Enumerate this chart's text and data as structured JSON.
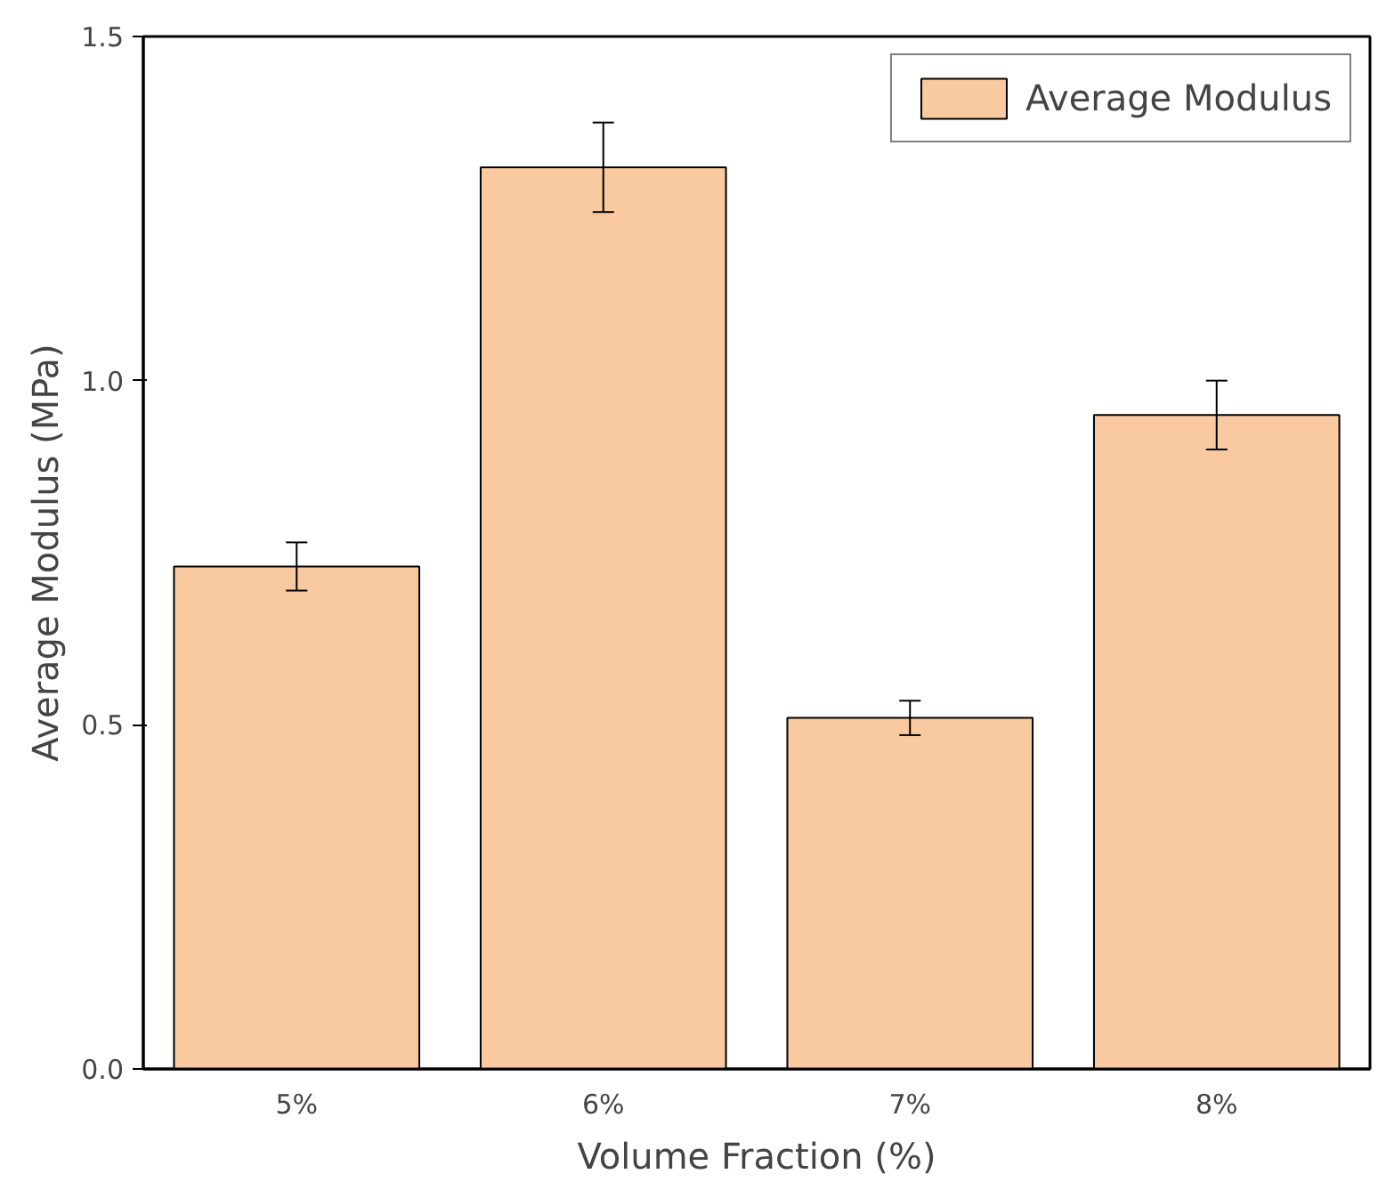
{
  "chart_data": {
    "type": "bar",
    "xlabel": "Volume Fraction (%)",
    "ylabel": "Average Modulus (MPa)",
    "categories": [
      "5%",
      "6%",
      "7%",
      "8%"
    ],
    "series": [
      {
        "name": "Average Modulus",
        "color": "#f9c9a0",
        "values": [
          0.73,
          1.31,
          0.51,
          0.95
        ],
        "errors": [
          0.035,
          0.065,
          0.025,
          0.05
        ]
      }
    ],
    "ylim": [
      0,
      1.5
    ],
    "yticks": [
      {
        "value": 0,
        "label": "0.0"
      },
      {
        "value": 0.5,
        "label": "0.5"
      },
      {
        "value": 1,
        "label": "1.0"
      },
      {
        "value": 1.5,
        "label": "1.5"
      }
    ],
    "grid": false,
    "legend": "top right"
  }
}
